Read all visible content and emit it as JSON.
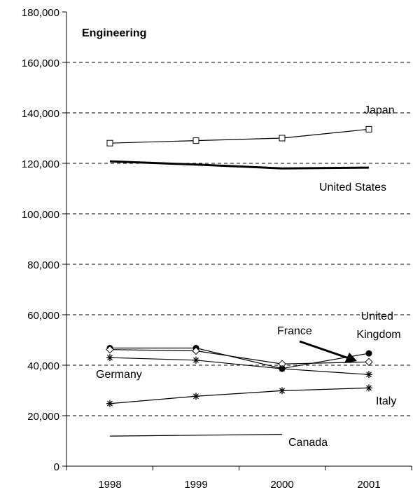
{
  "chart_data": {
    "type": "line",
    "title": "Engineering",
    "xlabel": "",
    "ylabel": "",
    "categories": [
      "1998",
      "1999",
      "2000",
      "2001"
    ],
    "ylim": [
      0,
      180000
    ],
    "yticks": [
      "0",
      "20,000",
      "40,000",
      "60,000",
      "80,000",
      "100,000",
      "120,000",
      "140,000",
      "160,000",
      "180,000"
    ],
    "grid": "horizontal-dashed",
    "legend": "none",
    "series": [
      {
        "name": "Japan",
        "values": [
          128000,
          129000,
          130000,
          133500
        ],
        "marker": "open-square",
        "color": "#000000"
      },
      {
        "name": "United States",
        "values": [
          120800,
          119500,
          118000,
          118300
        ],
        "marker": "none",
        "color": "#000000"
      },
      {
        "name": "United Kingdom",
        "values": [
          46800,
          46800,
          38700,
          44700
        ],
        "marker": "filled-circle",
        "color": "#000000"
      },
      {
        "name": "France",
        "values": [
          46200,
          45700,
          40500,
          41300
        ],
        "marker": "open-diamond",
        "color": "#000000"
      },
      {
        "name": "Germany",
        "values": [
          43000,
          42000,
          38600,
          36300
        ],
        "marker": "asterisk",
        "color": "#000000"
      },
      {
        "name": "Italy",
        "values": [
          24800,
          27700,
          29900,
          31000
        ],
        "marker": "asterisk",
        "color": "#000000"
      },
      {
        "name": "Canada",
        "values": [
          11900,
          null,
          12600,
          null
        ],
        "marker": "none",
        "color": "#000000"
      }
    ]
  }
}
